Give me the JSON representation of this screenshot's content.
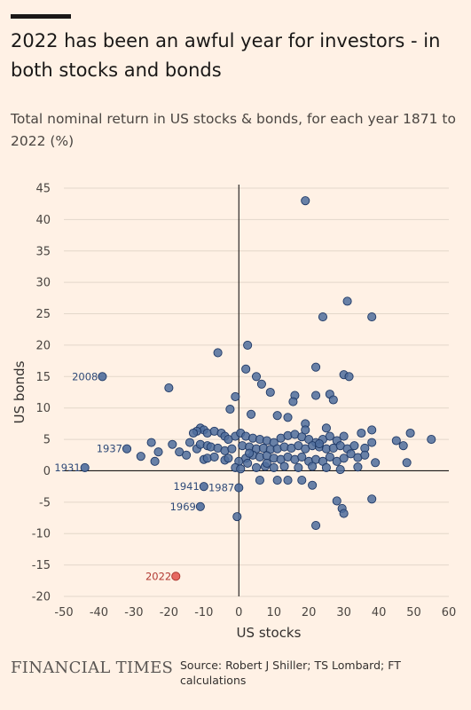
{
  "title": "2022 has been an awful year for investors - in both stocks and bonds",
  "subtitle": "Total nominal return in US stocks & bonds, for each year 1871 to 2022 (%)",
  "logo_text": "FINANCIAL TIMES",
  "source": "Source: Robert J Shiller; TS Lombard; FT calculations",
  "colors": {
    "point": "#4f6d9c",
    "point_stroke": "#1f3966",
    "highlight": "#e35a52",
    "background": "#fff1e5"
  },
  "chart_data": {
    "type": "scatter",
    "title": "",
    "xlabel": "US stocks",
    "ylabel": "US bonds",
    "xlim": [
      -50,
      60
    ],
    "ylim": [
      -20,
      45
    ],
    "x_ticks": [
      -50,
      -40,
      -30,
      -20,
      -10,
      0,
      10,
      20,
      30,
      40,
      50,
      60
    ],
    "y_ticks": [
      -20,
      -15,
      -10,
      -5,
      0,
      5,
      10,
      15,
      20,
      25,
      30,
      35,
      40,
      45
    ],
    "grid": "horizontal",
    "annotations": [
      {
        "label": "2008",
        "x": -39,
        "y": 15
      },
      {
        "label": "1937",
        "x": -32,
        "y": 3.5
      },
      {
        "label": "1931",
        "x": -44,
        "y": 0.5
      },
      {
        "label": "1941",
        "x": -10,
        "y": -2.5
      },
      {
        "label": "1987",
        "x": 0,
        "y": -2.7
      },
      {
        "label": "1969",
        "x": -11,
        "y": -5.7
      },
      {
        "label": "2022",
        "x": -18,
        "y": -16.8,
        "highlight": true
      }
    ],
    "points": [
      [
        19,
        43
      ],
      [
        31,
        27
      ],
      [
        38,
        24.5
      ],
      [
        24,
        24.5
      ],
      [
        2.5,
        20
      ],
      [
        -6,
        18.8
      ],
      [
        22,
        16.5
      ],
      [
        2,
        16.2
      ],
      [
        30,
        15.3
      ],
      [
        31.5,
        15
      ],
      [
        5,
        15
      ],
      [
        -20,
        13.2
      ],
      [
        6.5,
        13.8
      ],
      [
        9,
        12.5
      ],
      [
        16,
        12
      ],
      [
        15.5,
        11
      ],
      [
        26,
        12.2
      ],
      [
        27,
        11.3
      ],
      [
        -1,
        11.8
      ],
      [
        22,
        12
      ],
      [
        3.5,
        9
      ],
      [
        -2.5,
        9.8
      ],
      [
        11,
        8.8
      ],
      [
        14,
        8.5
      ],
      [
        19,
        7.5
      ],
      [
        25,
        6.8
      ],
      [
        35,
        6
      ],
      [
        38,
        6.5
      ],
      [
        49,
        6
      ],
      [
        -11,
        6.8
      ],
      [
        -10,
        6.5
      ],
      [
        -12,
        6.3
      ],
      [
        -13,
        6
      ],
      [
        -9,
        6
      ],
      [
        -7,
        6.3
      ],
      [
        -5,
        6
      ],
      [
        -4,
        5.5
      ],
      [
        -3,
        5
      ],
      [
        -1,
        5.5
      ],
      [
        0.5,
        6
      ],
      [
        2,
        5.5
      ],
      [
        4,
        5.2
      ],
      [
        6,
        5
      ],
      [
        8,
        4.8
      ],
      [
        10,
        4.5
      ],
      [
        12,
        5.2
      ],
      [
        14,
        5.6
      ],
      [
        16,
        5.8
      ],
      [
        18,
        5.4
      ],
      [
        20,
        5
      ],
      [
        22,
        4.5
      ],
      [
        24,
        5
      ],
      [
        26,
        5.5
      ],
      [
        28,
        4.8
      ],
      [
        30,
        5.5
      ],
      [
        -23,
        3
      ],
      [
        -17,
        3
      ],
      [
        -15,
        2.5
      ],
      [
        -14,
        4.5
      ],
      [
        -12,
        3.5
      ],
      [
        -11,
        4.2
      ],
      [
        -9,
        4
      ],
      [
        -8,
        3.8
      ],
      [
        -6,
        3.6
      ],
      [
        -4,
        3.2
      ],
      [
        -2,
        3.5
      ],
      [
        1,
        4
      ],
      [
        3,
        3.8
      ],
      [
        5,
        3.5
      ],
      [
        7,
        3.6
      ],
      [
        9,
        3.4
      ],
      [
        11,
        3.5
      ],
      [
        13,
        3.8
      ],
      [
        15,
        3.6
      ],
      [
        17,
        4
      ],
      [
        19,
        3.5
      ],
      [
        21,
        4
      ],
      [
        23,
        3.8
      ],
      [
        25,
        3.5
      ],
      [
        27,
        3.6
      ],
      [
        29,
        4
      ],
      [
        31,
        3.5
      ],
      [
        33,
        4
      ],
      [
        36,
        3.6
      ],
      [
        38,
        4.5
      ],
      [
        45,
        4.8
      ],
      [
        47,
        4
      ],
      [
        55,
        5
      ],
      [
        -25,
        4.5
      ],
      [
        -28,
        2.3
      ],
      [
        -24,
        1.5
      ],
      [
        -19,
        4.2
      ],
      [
        -10,
        1.8
      ],
      [
        -9,
        2
      ],
      [
        -7,
        2.2
      ],
      [
        -4,
        1.7
      ],
      [
        -3,
        2
      ],
      [
        0,
        1.5
      ],
      [
        2,
        2
      ],
      [
        4,
        2.5
      ],
      [
        6,
        2.2
      ],
      [
        8,
        2.4
      ],
      [
        10,
        2
      ],
      [
        12,
        1.8
      ],
      [
        14,
        2.2
      ],
      [
        16,
        1.8
      ],
      [
        18,
        2.2
      ],
      [
        20,
        1.5
      ],
      [
        22,
        1.8
      ],
      [
        24,
        1.5
      ],
      [
        26,
        2.2
      ],
      [
        28,
        1.5
      ],
      [
        30,
        2
      ],
      [
        32,
        2.7
      ],
      [
        34,
        2.1
      ],
      [
        36,
        2.5
      ],
      [
        39,
        1.3
      ],
      [
        48,
        1.3
      ],
      [
        -1,
        0.5
      ],
      [
        0.5,
        0.3
      ],
      [
        5,
        0.5
      ],
      [
        7.5,
        0.7
      ],
      [
        10,
        0.5
      ],
      [
        13,
        0.7
      ],
      [
        17,
        0.5
      ],
      [
        21,
        0.7
      ],
      [
        25,
        0.5
      ],
      [
        29,
        0.2
      ],
      [
        34,
        0.6
      ],
      [
        8,
        1.2
      ],
      [
        3,
        2.8
      ],
      [
        6,
        -1.5
      ],
      [
        11,
        -1.5
      ],
      [
        14,
        -1.5
      ],
      [
        18,
        -1.5
      ],
      [
        21,
        -2.3
      ],
      [
        -0.5,
        -7.3
      ],
      [
        28,
        -4.8
      ],
      [
        29.5,
        -6
      ],
      [
        30,
        -6.8
      ],
      [
        38,
        -4.5
      ],
      [
        22,
        -8.7
      ],
      [
        2.5,
        1.2
      ],
      [
        19,
        6.5
      ],
      [
        23,
        4.3
      ]
    ]
  }
}
